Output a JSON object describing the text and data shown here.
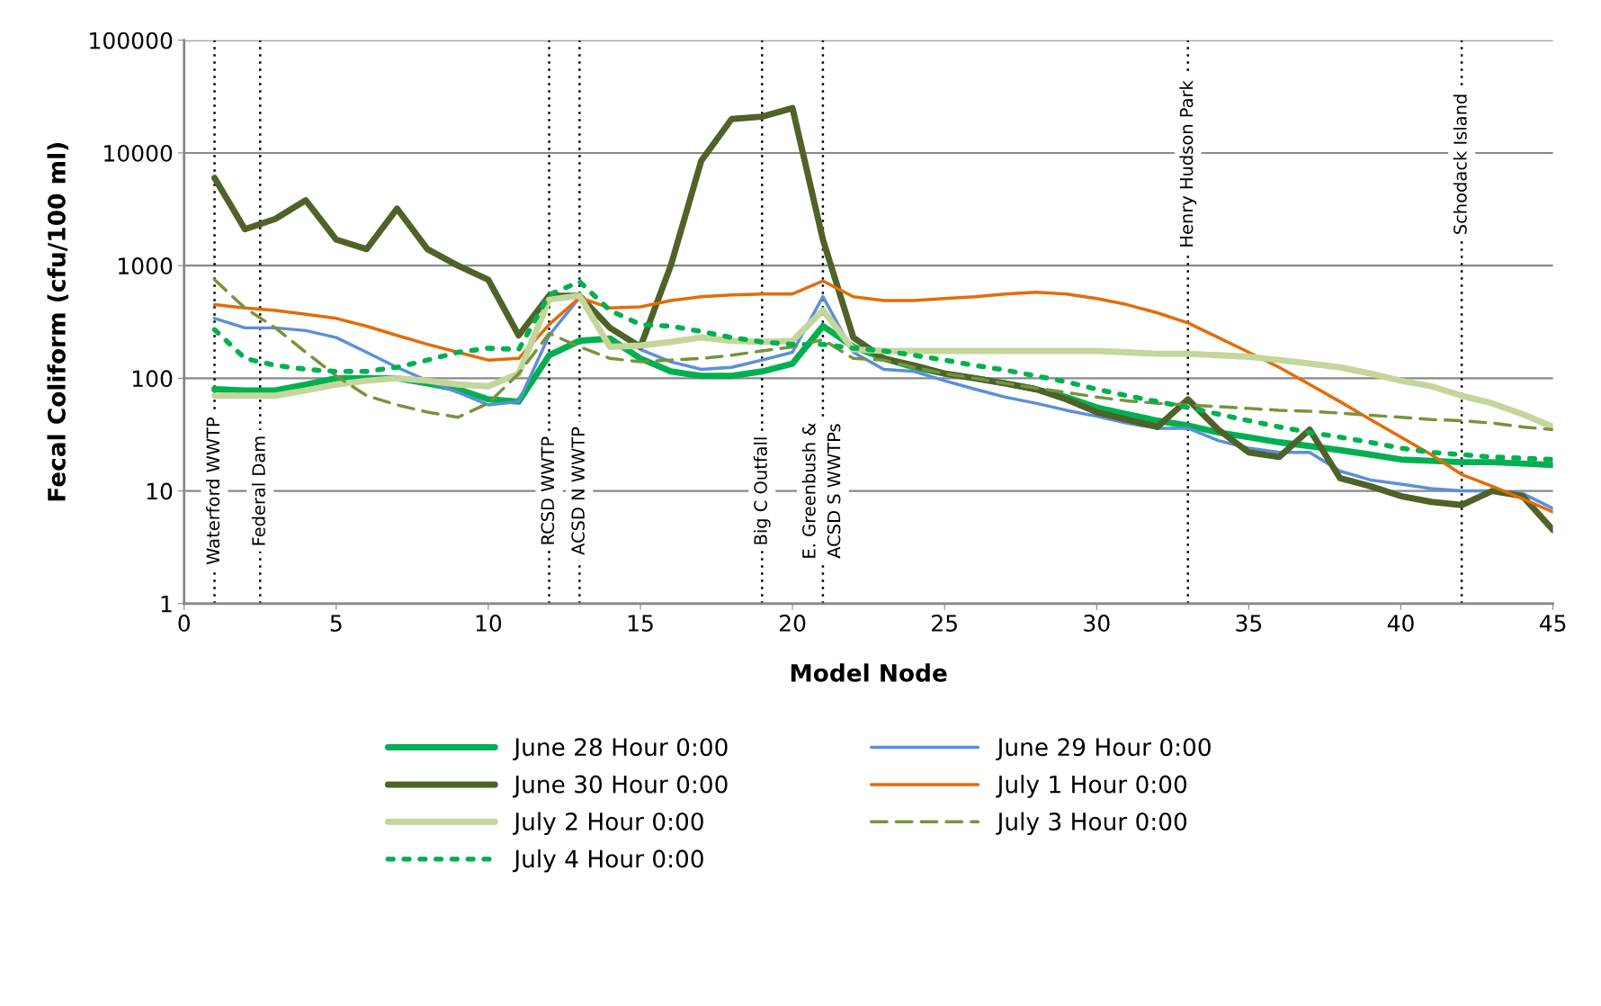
{
  "chart_data": {
    "type": "line",
    "xlabel": "Model Node",
    "ylabel": "Fecal Coliform (cfu/100 ml)",
    "x": [
      1,
      2,
      3,
      4,
      5,
      6,
      7,
      8,
      9,
      10,
      11,
      12,
      13,
      14,
      15,
      16,
      17,
      18,
      19,
      20,
      21,
      22,
      23,
      24,
      25,
      26,
      27,
      28,
      29,
      30,
      31,
      32,
      33,
      34,
      35,
      36,
      37,
      38,
      39,
      40,
      41,
      42,
      43,
      44,
      45
    ],
    "series": [
      {
        "name": "June 28 Hour 0:00",
        "color": "#00b050",
        "line_style": "solid",
        "values": [
          80,
          78,
          78,
          88,
          100,
          100,
          100,
          90,
          80,
          65,
          62,
          160,
          215,
          225,
          150,
          115,
          105,
          105,
          115,
          135,
          290,
          190,
          150,
          125,
          110,
          100,
          90,
          80,
          68,
          55,
          48,
          42,
          38,
          33,
          30,
          27,
          25,
          23,
          21,
          19,
          18.5,
          18,
          18,
          17.5,
          17
        ]
      },
      {
        "name": "June 29 Hour 0:00",
        "color": "#5b8fd9",
        "line_style": "solid",
        "values": [
          340,
          280,
          280,
          265,
          230,
          170,
          125,
          95,
          75,
          58,
          62,
          240,
          520,
          280,
          180,
          140,
          120,
          125,
          145,
          170,
          530,
          170,
          120,
          115,
          95,
          80,
          68,
          60,
          52,
          46,
          40,
          36,
          36,
          28,
          24,
          22,
          22,
          15,
          12.5,
          11.5,
          10.5,
          10,
          10,
          9.5,
          7
        ]
      },
      {
        "name": "June 30 Hour 0:00",
        "color": "#4f6228",
        "line_style": "solid",
        "values": [
          6000,
          2100,
          2600,
          3800,
          1700,
          1400,
          3200,
          1400,
          1000,
          750,
          240,
          540,
          540,
          280,
          190,
          1000,
          8500,
          20000,
          21000,
          25000,
          1700,
          230,
          150,
          130,
          110,
          100,
          90,
          80,
          65,
          50,
          43,
          37,
          65,
          35,
          22,
          20,
          35,
          13,
          11,
          9,
          8,
          7.5,
          10,
          9,
          4.5
        ]
      },
      {
        "name": "July 1 Hour 0:00",
        "color": "#e36c09",
        "line_style": "solid",
        "values": [
          450,
          420,
          400,
          370,
          340,
          290,
          240,
          200,
          170,
          145,
          150,
          300,
          520,
          420,
          430,
          490,
          530,
          550,
          560,
          560,
          730,
          530,
          490,
          490,
          510,
          530,
          560,
          580,
          560,
          510,
          450,
          380,
          310,
          230,
          170,
          125,
          88,
          62,
          43,
          30,
          21,
          14,
          11,
          8.5,
          6.5
        ]
      },
      {
        "name": "July 2 Hour 0:00",
        "color": "#c3d69b",
        "line_style": "solid",
        "values": [
          70,
          70,
          70,
          78,
          88,
          95,
          100,
          95,
          88,
          85,
          110,
          500,
          540,
          190,
          195,
          210,
          230,
          215,
          210,
          215,
          400,
          180,
          175,
          175,
          175,
          175,
          175,
          175,
          175,
          175,
          170,
          165,
          165,
          160,
          155,
          145,
          135,
          125,
          110,
          95,
          85,
          70,
          60,
          48,
          37
        ]
      },
      {
        "name": "July 3 Hour 0:00",
        "color": "#77933c",
        "line_style": "dashed",
        "values": [
          750,
          420,
          280,
          170,
          105,
          70,
          58,
          50,
          45,
          60,
          110,
          250,
          190,
          150,
          140,
          145,
          150,
          160,
          175,
          190,
          220,
          150,
          145,
          125,
          110,
          100,
          90,
          82,
          75,
          68,
          63,
          60,
          58,
          56,
          54,
          52,
          51,
          49,
          47,
          45,
          43,
          42,
          40,
          37,
          35
        ]
      },
      {
        "name": "July 4 Hour 0:00",
        "color": "#00b050",
        "line_style": "dotted",
        "values": [
          270,
          150,
          130,
          120,
          115,
          115,
          125,
          145,
          170,
          185,
          180,
          550,
          720,
          400,
          300,
          290,
          260,
          230,
          210,
          200,
          200,
          185,
          175,
          160,
          145,
          130,
          118,
          105,
          93,
          80,
          70,
          62,
          55,
          48,
          42,
          37,
          33,
          30,
          27,
          24,
          22,
          21,
          20,
          19.5,
          19
        ]
      }
    ],
    "log": true,
    "xlim": [
      0,
      45
    ],
    "xticks": [
      0,
      5,
      10,
      15,
      20,
      25,
      30,
      35,
      40,
      45
    ],
    "ylim": [
      1,
      100000
    ],
    "yticks": [
      1,
      10,
      100,
      1000,
      10000,
      100000
    ],
    "grid": "y",
    "legend": "bottom",
    "ref_lines": [
      {
        "axis": "x",
        "value": 1,
        "label": "Waterford WWTP",
        "color": "#000000",
        "line_style": "dotted"
      },
      {
        "axis": "x",
        "value": 2.5,
        "label": "Federal Dam",
        "color": "#000000",
        "line_style": "dotted"
      },
      {
        "axis": "x",
        "value": 12,
        "label": "RCSD WWTP",
        "color": "#000000",
        "line_style": "dotted"
      },
      {
        "axis": "x",
        "value": 13,
        "label": "ACSD N WWTP",
        "color": "#000000",
        "line_style": "dotted"
      },
      {
        "axis": "x",
        "value": 19,
        "label": "Big C Outfall",
        "color": "#000000",
        "line_style": "dotted"
      },
      {
        "axis": "x",
        "value": 21,
        "label": "E. Greenbush &\nACSD S WWTPs",
        "color": "#000000",
        "line_style": "dotted"
      },
      {
        "axis": "x",
        "value": 33,
        "label": "Henry Hudson Park",
        "color": "#000000",
        "line_style": "dotted"
      },
      {
        "axis": "x",
        "value": 42,
        "label": "Schodack Island",
        "color": "#000000",
        "line_style": "dotted"
      }
    ]
  }
}
